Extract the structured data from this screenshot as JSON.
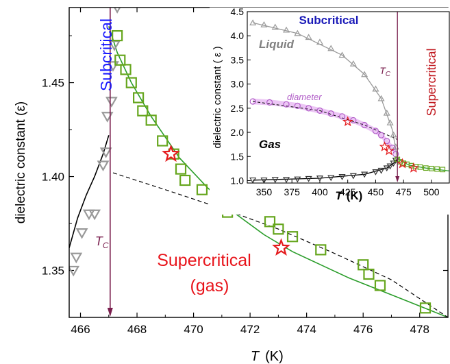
{
  "chart_data": [
    {
      "type": "scatter",
      "xlabel": "T (K)",
      "xlabel_symbol": "T",
      "xlabel_unit": "(K)",
      "ylabel": "dielectric constant (ε)",
      "xlim": [
        465.6,
        479.0
      ],
      "ylim": [
        1.325,
        1.49
      ],
      "xticks": [
        466,
        468,
        470,
        472,
        474,
        476,
        478
      ],
      "yticks": [
        1.35,
        1.4,
        1.45
      ],
      "annotations": {
        "subcritical": "Subcritical",
        "supercritical": "Supercritical",
        "gas": "(gas)",
        "tc_symbol": "T",
        "tc_sub": "C"
      },
      "tc_x": 467.05,
      "series": [
        {
          "marker": "triangle-down",
          "color": "#999999",
          "x": [
            465.75,
            465.85,
            466.05,
            466.3,
            466.5,
            466.8,
            466.9,
            466.95,
            467.1,
            467.15,
            467.2,
            467.3
          ],
          "y": [
            1.35,
            1.357,
            1.37,
            1.38,
            1.38,
            1.406,
            1.413,
            1.432,
            1.44,
            1.459,
            1.47,
            1.49
          ]
        },
        {
          "marker": "square",
          "color": "#66a61e",
          "x": [
            467.3,
            467.4,
            467.6,
            467.8,
            468.05,
            468.2,
            468.5,
            468.9,
            469.3,
            469.55,
            469.7,
            470.3,
            471.0,
            471.2,
            471.9,
            472.7,
            473.0,
            473.5,
            474.5,
            476.0,
            476.2,
            476.6,
            478.2
          ],
          "y": [
            1.475,
            1.462,
            1.457,
            1.45,
            1.442,
            1.435,
            1.43,
            1.419,
            1.412,
            1.404,
            1.398,
            1.393,
            1.388,
            1.381,
            1.384,
            1.376,
            1.372,
            1.368,
            1.361,
            1.353,
            1.348,
            1.342,
            1.33
          ]
        },
        {
          "marker": "star",
          "color": "#e41a1c",
          "x": [
            469.2,
            473.1
          ],
          "y": [
            1.412,
            1.362
          ]
        }
      ],
      "fits": [
        {
          "style": "solid",
          "color": "#000000",
          "x": [
            465.6,
            465.9,
            466.2,
            466.5,
            466.8,
            467.0
          ],
          "y": [
            1.362,
            1.378,
            1.39,
            1.4,
            1.412,
            1.422
          ]
        },
        {
          "style": "solid",
          "color": "#2a9d2a",
          "x": [
            467.0,
            467.3,
            467.8,
            468.5,
            469.5,
            470.5,
            471.5,
            472.5,
            473.5,
            474.5,
            475.5,
            476.5,
            477.5,
            478.5,
            479.0
          ],
          "y": [
            1.48,
            1.466,
            1.45,
            1.432,
            1.41,
            1.394,
            1.38,
            1.369,
            1.36,
            1.353,
            1.346,
            1.34,
            1.334,
            1.328,
            1.325
          ]
        },
        {
          "style": "dashed",
          "color": "#000000",
          "x": [
            467.15,
            469,
            471,
            473,
            475,
            477,
            479.0
          ],
          "y": [
            1.402,
            1.393,
            1.383,
            1.372,
            1.359,
            1.345,
            1.325
          ]
        }
      ]
    },
    {
      "type": "scatter",
      "inset": true,
      "xlabel": "T (K)",
      "xlabel_symbol": "T",
      "xlabel_unit": "(K)",
      "ylabel": "dielectric constant ( ε )",
      "xlim": [
        335,
        516
      ],
      "ylim": [
        0.95,
        4.5
      ],
      "xticks": [
        350,
        375,
        400,
        425,
        450,
        475,
        500
      ],
      "yticks": [
        1.0,
        1.5,
        2.0,
        2.5,
        3.0,
        3.5,
        4.0,
        4.5
      ],
      "annotations": {
        "subcritical": "Subcritical",
        "supercritical": "Supercritical",
        "liquid": "Liquid",
        "gas": "Gas",
        "diameter": "diameter",
        "tc_symbol": "T",
        "tc_sub": "C"
      },
      "tc_x": 469.5,
      "series": [
        {
          "name": "Liquid",
          "marker": "triangle-up",
          "color": "#999999",
          "x": [
            340,
            350,
            360,
            370,
            380,
            390,
            400,
            410,
            420,
            430,
            440,
            450,
            455,
            460,
            463,
            466,
            468
          ],
          "y": [
            4.27,
            4.23,
            4.18,
            4.12,
            4.05,
            3.97,
            3.87,
            3.74,
            3.6,
            3.42,
            3.2,
            2.9,
            2.7,
            2.4,
            2.2,
            1.95,
            1.7
          ]
        },
        {
          "name": "Gas",
          "marker": "triangle-down",
          "color": "#333333",
          "x": [
            340,
            350,
            360,
            370,
            380,
            390,
            400,
            410,
            420,
            430,
            440,
            450,
            455,
            460,
            463,
            466,
            468
          ],
          "y": [
            1.01,
            1.01,
            1.02,
            1.02,
            1.03,
            1.04,
            1.05,
            1.06,
            1.08,
            1.1,
            1.13,
            1.18,
            1.21,
            1.26,
            1.3,
            1.36,
            1.42
          ]
        },
        {
          "name": "diameter",
          "marker": "circle",
          "color": "#b05bc7",
          "x": [
            340,
            355,
            370,
            380,
            390,
            400,
            410,
            420,
            430,
            440,
            450,
            455,
            460,
            465,
            468
          ],
          "y": [
            2.64,
            2.62,
            2.58,
            2.55,
            2.5,
            2.45,
            2.39,
            2.33,
            2.25,
            2.15,
            2.03,
            1.94,
            1.82,
            1.68,
            1.55
          ]
        },
        {
          "name": "Supercritical",
          "marker": "square",
          "color": "#66a61e",
          "x": [
            469.5,
            472,
            475,
            478,
            482,
            486,
            490,
            495,
            500,
            505,
            510
          ],
          "y": [
            1.44,
            1.39,
            1.36,
            1.34,
            1.31,
            1.29,
            1.28,
            1.26,
            1.25,
            1.24,
            1.23
          ]
        },
        {
          "name": "stars",
          "marker": "star",
          "color": "#e41a1c",
          "x": [
            425,
            458,
            462,
            474,
            484
          ],
          "y": [
            2.22,
            1.7,
            1.62,
            1.35,
            1.26
          ]
        }
      ],
      "fits": [
        {
          "style": "solid",
          "color": "#999999",
          "x": [
            340,
            380,
            420,
            440,
            455,
            465,
            469.5
          ],
          "y": [
            4.27,
            4.05,
            3.6,
            3.2,
            2.7,
            2.05,
            1.45
          ]
        },
        {
          "style": "solid",
          "color": "#000000",
          "x": [
            340,
            400,
            440,
            460,
            466,
            469.5
          ],
          "y": [
            1.01,
            1.05,
            1.13,
            1.26,
            1.36,
            1.45
          ]
        },
        {
          "style": "dashed",
          "color": "#000000",
          "x": [
            340,
            400,
            440,
            465,
            469.5
          ],
          "y": [
            2.64,
            2.45,
            2.15,
            1.9,
            1.85
          ]
        },
        {
          "style": "solid",
          "color": "#2a9d2a",
          "x": [
            469.5,
            480,
            495,
            516
          ],
          "y": [
            1.45,
            1.32,
            1.26,
            1.2
          ]
        }
      ]
    }
  ]
}
